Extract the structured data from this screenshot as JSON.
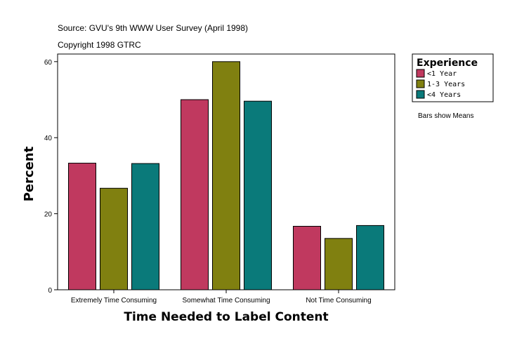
{
  "header": {
    "source": "Source: GVU's 9th WWW User Survey (April 1998)",
    "copyright": "Copyright 1998 GTRC"
  },
  "note": "Bars show Means",
  "colors": {
    "series": [
      "#c0395f",
      "#808010",
      "#0a7a7a"
    ],
    "frame": "#000000",
    "background": "#ffffff"
  },
  "chart_data": {
    "type": "bar",
    "categories": [
      "Extremely Time Consuming",
      "Somewhat Time Consuming",
      "Not Time Consuming"
    ],
    "series": [
      {
        "name": "<1 Year",
        "values": [
          33.3,
          50.0,
          16.7
        ]
      },
      {
        "name": "1-3 Years",
        "values": [
          26.7,
          60.0,
          13.5
        ]
      },
      {
        "name": "<4 Years",
        "values": [
          33.2,
          49.6,
          16.9
        ]
      }
    ],
    "xlabel": "Time Needed to Label Content",
    "ylabel": "Percent",
    "ylim": [
      0,
      62
    ],
    "yticks": [
      0,
      20,
      40,
      60
    ],
    "legend": {
      "title": "Experience",
      "placement": "right"
    },
    "grid": false
  }
}
